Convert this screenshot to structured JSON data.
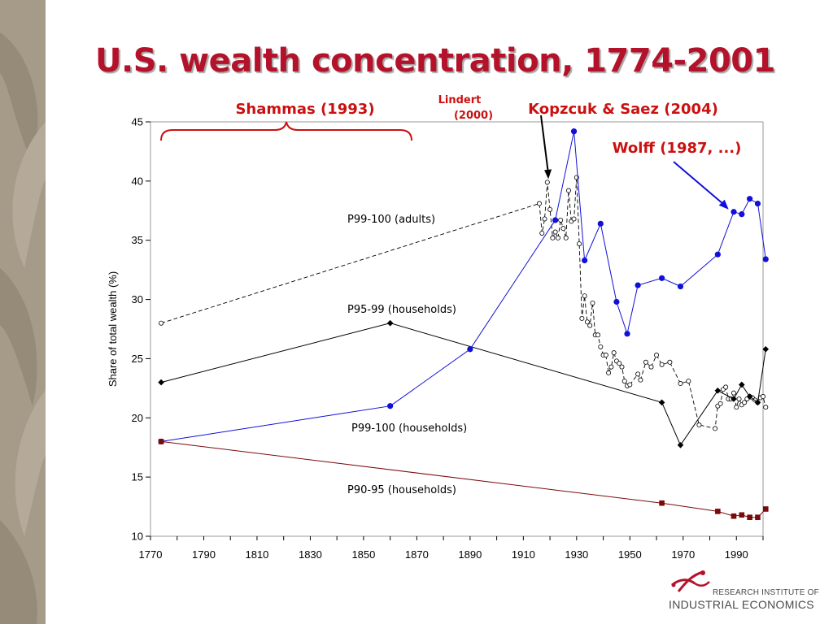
{
  "slide": {
    "title": "U.S. wealth concentration, 1774-2001",
    "logo": {
      "line1": "RESEARCH INSTITUTE OF",
      "line2": "INDUSTRIAL ECONOMICS",
      "icon": "sprout-logo-icon"
    }
  },
  "colors": {
    "title": "#b3122a",
    "blue": "#1010d8",
    "black": "#000000",
    "darkred": "#7a0a0a",
    "annotation": "#cc1010",
    "sidebar": "#a69a88"
  },
  "chart_data": {
    "type": "line",
    "title": "",
    "xlabel": "",
    "ylabel": "Share of total wealth (%)",
    "xlim": [
      1770,
      2000
    ],
    "ylim": [
      10,
      45
    ],
    "xticks": [
      1770,
      1790,
      1810,
      1830,
      1850,
      1870,
      1890,
      1910,
      1930,
      1950,
      1970,
      1990
    ],
    "yticks": [
      10,
      15,
      20,
      25,
      30,
      35,
      40,
      45
    ],
    "grid": false,
    "series": [
      {
        "name": "P99-100 (adults)",
        "color": "#000000",
        "style": "dashed",
        "marker": "open-circle",
        "points": [
          [
            1774,
            28.0
          ],
          [
            1916,
            38.1
          ],
          [
            1917,
            35.6
          ],
          [
            1918,
            36.8
          ],
          [
            1919,
            39.9
          ],
          [
            1920,
            37.6
          ],
          [
            1921,
            35.2
          ],
          [
            1922,
            35.7
          ],
          [
            1923,
            35.2
          ],
          [
            1924,
            36.7
          ],
          [
            1925,
            36.0
          ],
          [
            1926,
            35.2
          ],
          [
            1927,
            39.2
          ],
          [
            1928,
            36.6
          ],
          [
            1929,
            36.8
          ],
          [
            1930,
            40.3
          ],
          [
            1931,
            34.7
          ],
          [
            1932,
            28.4
          ],
          [
            1933,
            30.3
          ],
          [
            1934,
            28.1
          ],
          [
            1935,
            27.8
          ],
          [
            1936,
            29.7
          ],
          [
            1937,
            27.0
          ],
          [
            1938,
            27.0
          ],
          [
            1939,
            26.0
          ],
          [
            1940,
            25.3
          ],
          [
            1941,
            25.3
          ],
          [
            1942,
            23.8
          ],
          [
            1943,
            24.3
          ],
          [
            1944,
            25.5
          ],
          [
            1945,
            24.8
          ],
          [
            1946,
            24.6
          ],
          [
            1947,
            24.3
          ],
          [
            1948,
            23.1
          ],
          [
            1949,
            22.7
          ],
          [
            1950,
            22.8
          ],
          [
            1953,
            23.7
          ],
          [
            1954,
            23.2
          ],
          [
            1956,
            24.7
          ],
          [
            1958,
            24.3
          ],
          [
            1960,
            25.3
          ],
          [
            1962,
            24.5
          ],
          [
            1965,
            24.7
          ],
          [
            1969,
            22.9
          ],
          [
            1972,
            23.1
          ],
          [
            1976,
            19.4
          ],
          [
            1982,
            19.1
          ],
          [
            1983,
            21.0
          ],
          [
            1984,
            21.2
          ],
          [
            1985,
            22.4
          ],
          [
            1986,
            22.6
          ],
          [
            1987,
            21.6
          ],
          [
            1988,
            21.6
          ],
          [
            1989,
            22.1
          ],
          [
            1990,
            20.9
          ],
          [
            1991,
            21.6
          ],
          [
            1992,
            21.1
          ],
          [
            1993,
            21.3
          ],
          [
            1994,
            21.6
          ],
          [
            1995,
            21.8
          ],
          [
            1996,
            21.7
          ],
          [
            1997,
            21.5
          ],
          [
            1998,
            21.3
          ],
          [
            1999,
            21.7
          ],
          [
            2000,
            21.8
          ],
          [
            2001,
            20.9
          ]
        ]
      },
      {
        "name": "P95-99 (households)",
        "color": "#000000",
        "style": "solid",
        "marker": "filled-diamond",
        "points": [
          [
            1774,
            23.0
          ],
          [
            1860,
            28.0
          ],
          [
            1962,
            21.3
          ],
          [
            1969,
            17.7
          ],
          [
            1983,
            22.3
          ],
          [
            1989,
            21.6
          ],
          [
            1992,
            22.8
          ],
          [
            1995,
            21.8
          ],
          [
            1998,
            21.3
          ],
          [
            2001,
            25.8
          ]
        ]
      },
      {
        "name": "P99-100 (households)",
        "color": "#1010d8",
        "style": "solid",
        "marker": "filled-circle",
        "points": [
          [
            1774,
            18.0
          ],
          [
            1860,
            21.0
          ],
          [
            1890,
            25.8
          ],
          [
            1922,
            36.7
          ],
          [
            1929,
            44.2
          ],
          [
            1933,
            33.3
          ],
          [
            1939,
            36.4
          ],
          [
            1945,
            29.8
          ],
          [
            1949,
            27.1
          ],
          [
            1953,
            31.2
          ],
          [
            1962,
            31.8
          ],
          [
            1969,
            31.1
          ],
          [
            1983,
            33.8
          ],
          [
            1989,
            37.4
          ],
          [
            1992,
            37.2
          ],
          [
            1995,
            38.5
          ],
          [
            1998,
            38.1
          ],
          [
            2001,
            33.4
          ]
        ]
      },
      {
        "name": "P90-95 (households)",
        "color": "#7a0a0a",
        "style": "solid",
        "marker": "filled-square",
        "points": [
          [
            1774,
            18.0
          ],
          [
            1962,
            12.8
          ],
          [
            1983,
            12.1
          ],
          [
            1989,
            11.7
          ],
          [
            1992,
            11.8
          ],
          [
            1995,
            11.6
          ],
          [
            1998,
            11.6
          ],
          [
            2001,
            12.3
          ]
        ]
      }
    ],
    "annotations": [
      {
        "text": "Shammas (1993)",
        "kind": "brace",
        "range": [
          1774,
          1868
        ]
      },
      {
        "text": "Lindert (2000)",
        "kind": "arrow-black",
        "target": [
          1920,
          39.9
        ]
      },
      {
        "text": "Kopzcuk & Saez (2004)",
        "kind": "label"
      },
      {
        "text": "Wolff (1987, ...)",
        "kind": "arrow-blue",
        "target": [
          1988,
          37.4
        ]
      }
    ]
  }
}
